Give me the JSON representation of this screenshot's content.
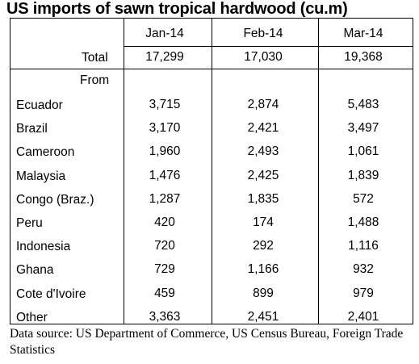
{
  "title": "US imports of sawn tropical hardwood (cu.m)",
  "chart_data": {
    "type": "table",
    "title": "US imports of sawn tropical hardwood (cu.m)",
    "columns": [
      "Jan-14",
      "Feb-14",
      "Mar-14"
    ],
    "total": {
      "label": "Total",
      "values": [
        "17,299",
        "17,030",
        "19,368"
      ]
    },
    "from_label": "From",
    "rows": [
      {
        "label": "Ecuador",
        "values": [
          "3,715",
          "2,874",
          "5,483"
        ]
      },
      {
        "label": "Brazil",
        "values": [
          "3,170",
          "2,421",
          "3,497"
        ]
      },
      {
        "label": "Cameroon",
        "values": [
          "1,960",
          "2,493",
          "1,061"
        ]
      },
      {
        "label": "Malaysia",
        "values": [
          "1,476",
          "2,425",
          "1,839"
        ]
      },
      {
        "label": "Congo (Braz.)",
        "values": [
          "1,287",
          "1,835",
          "572"
        ]
      },
      {
        "label": "Peru",
        "values": [
          "420",
          "174",
          "1,488"
        ]
      },
      {
        "label": "Indonesia",
        "values": [
          "720",
          "292",
          "1,116"
        ]
      },
      {
        "label": "Ghana",
        "values": [
          "729",
          "1,166",
          "932"
        ]
      },
      {
        "label": "Cote d'Ivoire",
        "values": [
          "459",
          "899",
          "979"
        ]
      },
      {
        "label": "Other",
        "values": [
          "3,363",
          "2,451",
          "2,401"
        ]
      }
    ]
  },
  "source_text": "Data source: US Department of Commerce, US Census Bureau, Foreign Trade Statistics"
}
